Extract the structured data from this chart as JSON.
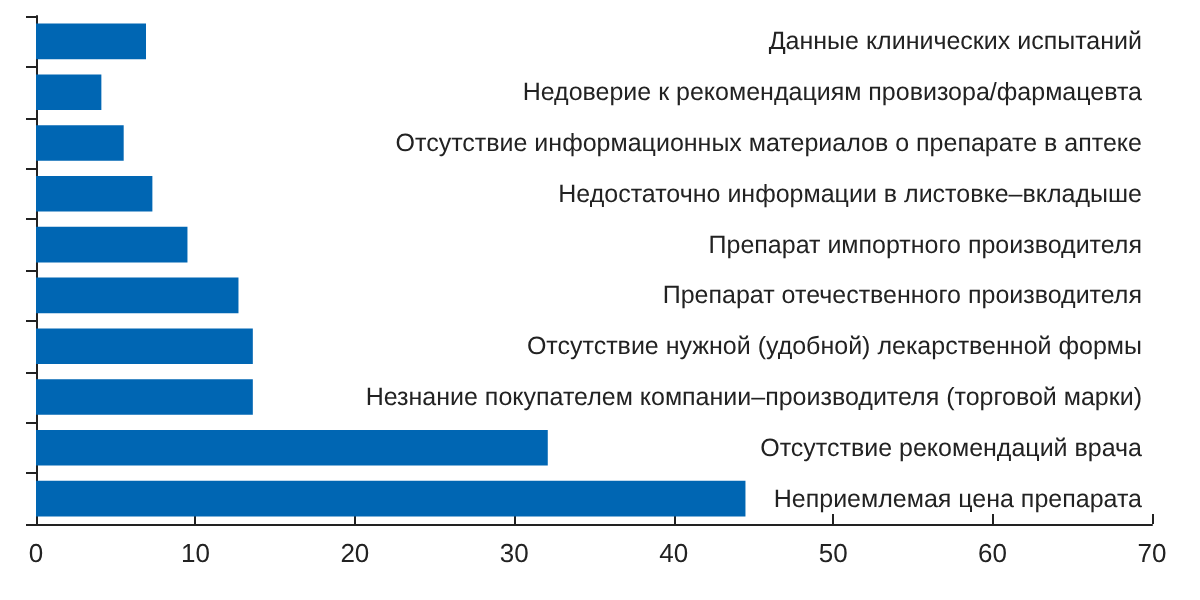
{
  "chart_data": {
    "type": "bar",
    "orientation": "horizontal",
    "categories": [
      "Данные клинических испытаний",
      "Недоверие к рекомендациям провизора/фармацевта",
      "Отсутствие информационных материалов о препарате в аптеке",
      "Недостаточно информации в листовке–вкладыше",
      "Препарат импортного производителя",
      "Препарат отечественного производителя",
      "Отсутствие нужной (удобной) лекарственной формы",
      "Незнание покупателем компании–производителя (торговой марки)",
      "Отсутствие рекомендаций врача",
      "Неприемлемая цена препарата"
    ],
    "values": [
      6.9,
      4.1,
      5.5,
      7.3,
      9.5,
      12.7,
      13.6,
      13.6,
      32.1,
      44.5
    ],
    "color": "#0066b3",
    "xlim": [
      0,
      70
    ],
    "xticks": [
      0,
      10,
      20,
      30,
      40,
      50,
      60,
      70
    ]
  }
}
